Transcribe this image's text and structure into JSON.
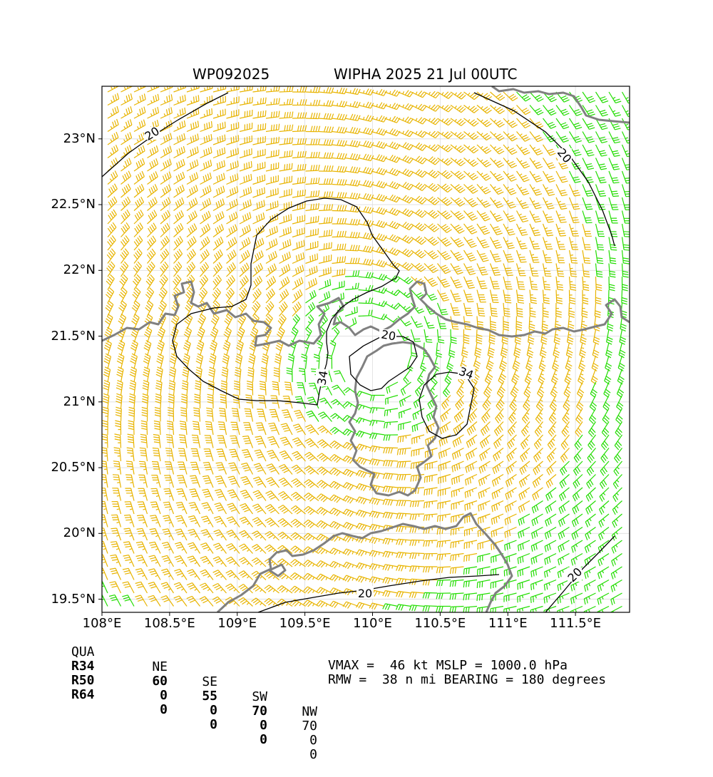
{
  "header": {
    "storm_id": "WP092025",
    "storm_title": "WIPHA 2025 21 Jul 00UTC"
  },
  "axes": {
    "lat_labels": [
      "23°N",
      "22.5°N",
      "22°N",
      "21.5°N",
      "21°N",
      "20.5°N",
      "20°N",
      "19.5°N"
    ],
    "lon_labels": [
      "108°E",
      "108.5°E",
      "109°E",
      "109.5°E",
      "110°E",
      "110.5°E",
      "111°E",
      "111.5°E"
    ],
    "lat_range": [
      19.4,
      23.4
    ],
    "lon_range": [
      108.0,
      111.9
    ]
  },
  "contours": {
    "labels": [
      "20",
      "20",
      "20",
      "20",
      "20",
      "34",
      "34"
    ]
  },
  "colors": {
    "barb_low": "#000000",
    "barb_34": "#22dd00",
    "barb_50": "#e8b400",
    "coastline": "#808080",
    "contour": "#000000"
  },
  "storm_center": {
    "lat": 21.35,
    "lon": 110.0
  },
  "wind_radii": {
    "header": [
      "QUA",
      "NE",
      "SE",
      "SW",
      "NW"
    ],
    "rows": [
      {
        "label": "R34",
        "values": [
          "60",
          "55",
          "70",
          "70"
        ]
      },
      {
        "label": "R50",
        "values": [
          "0",
          "0",
          "0",
          "0"
        ]
      },
      {
        "label": "R64",
        "values": [
          "0",
          "0",
          "0",
          "0"
        ]
      }
    ]
  },
  "summary": {
    "line1": "VMAX =  46 kt MSLP = 1000.0 hPa",
    "line2": "RMW =  38 n mi BEARING = 180 degrees"
  }
}
